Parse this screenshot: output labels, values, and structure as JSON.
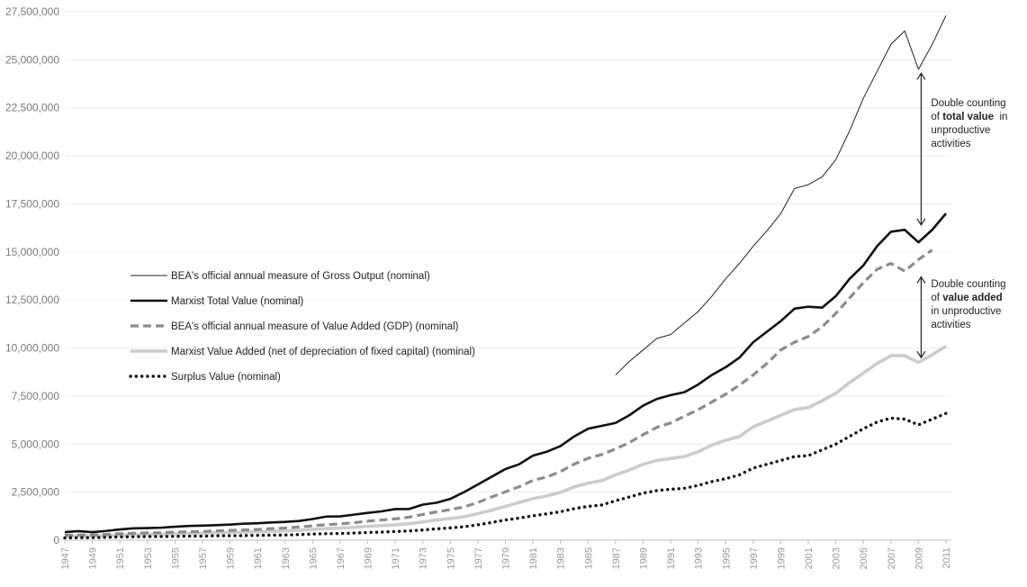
{
  "chart_data": {
    "type": "line",
    "title": "",
    "xlabel": "",
    "ylabel": "",
    "ylim": [
      0,
      27500000
    ],
    "yticks": [
      0,
      2500000,
      5000000,
      7500000,
      10000000,
      12500000,
      15000000,
      17500000,
      20000000,
      22500000,
      25000000,
      27500000
    ],
    "ytick_labels": [
      "0",
      "2,500,000",
      "5,000,000",
      "7,500,000",
      "10,000,000",
      "12,500,000",
      "15,000,000",
      "17,500,000",
      "20,000,000",
      "22,500,000",
      "25,000,000",
      "27,500,000"
    ],
    "xtick_labels": [
      "1947",
      "1949",
      "1951",
      "1953",
      "1955",
      "1957",
      "1959",
      "1961",
      "1963",
      "1965",
      "1967",
      "1969",
      "1971",
      "1973",
      "1975",
      "1977",
      "1979",
      "1981",
      "1983",
      "1985",
      "1987",
      "1989",
      "1991",
      "1993",
      "1995",
      "1997",
      "1999",
      "2001",
      "2003",
      "2005",
      "2007",
      "2009",
      "2011"
    ],
    "grid": "horizontal",
    "legend_position": "left",
    "x_start": 1947,
    "x_end": 2011,
    "series": [
      {
        "name": "BEA's official annual measure of Gross Output (nominal)",
        "style": "thin-black",
        "color": "#222222",
        "x_start": 1987,
        "values": [
          8600000,
          9300000,
          9900000,
          10500000,
          10700000,
          11300000,
          11900000,
          12700000,
          13600000,
          14400000,
          15300000,
          16100000,
          17000000,
          18300000,
          18500000,
          18900000,
          19800000,
          21300000,
          23000000,
          24400000,
          25800000,
          26500000,
          24500000,
          25800000,
          27300000
        ]
      },
      {
        "name": "Marxist Total Value (nominal)",
        "style": "thick-black",
        "color": "#111111",
        "x_start": 1947,
        "values": [
          420000,
          470000,
          420000,
          480000,
          560000,
          620000,
          630000,
          650000,
          700000,
          740000,
          760000,
          780000,
          810000,
          860000,
          880000,
          920000,
          950000,
          1000000,
          1100000,
          1230000,
          1240000,
          1330000,
          1420000,
          1500000,
          1620000,
          1620000,
          1850000,
          1950000,
          2150000,
          2500000,
          2900000,
          3300000,
          3700000,
          3950000,
          4400000,
          4600000,
          4900000,
          5400000,
          5800000,
          5950000,
          6100000,
          6500000,
          7000000,
          7350000,
          7550000,
          7700000,
          8100000,
          8600000,
          9000000,
          9500000,
          10300000,
          10850000,
          11400000,
          12050000,
          12150000,
          12100000,
          12700000,
          13600000,
          14300000,
          15300000,
          16050000,
          16150000,
          15500000,
          16150000,
          17000000
        ]
      },
      {
        "name": "BEA's official annual measure of Value Added (GDP) (nominal)",
        "style": "dashed-gray",
        "color": "#8c8c8c",
        "x_start": 1947,
        "values": [
          250000,
          270000,
          270000,
          300000,
          340000,
          360000,
          380000,
          390000,
          420000,
          440000,
          450000,
          490000,
          510000,
          530000,
          560000,
          600000,
          630000,
          690000,
          750000,
          810000,
          850000,
          910000,
          990000,
          1050000,
          1110000,
          1200000,
          1340000,
          1470000,
          1590000,
          1730000,
          1960000,
          2250000,
          2520000,
          2780000,
          3110000,
          3290000,
          3570000,
          3960000,
          4260000,
          4460000,
          4750000,
          5080000,
          5490000,
          5870000,
          6100000,
          6450000,
          6790000,
          7190000,
          7600000,
          8070000,
          8600000,
          9200000,
          9900000,
          10300000,
          10600000,
          11100000,
          11800000,
          12600000,
          13400000,
          14100000,
          14400000,
          14000000,
          14600000,
          15100000
        ]
      },
      {
        "name": "Marxist Value Added (net of depreciation of fixed capital) (nominal)",
        "style": "thick-lightgray",
        "color": "#cccccc",
        "x_start": 1947,
        "values": [
          200000,
          220000,
          210000,
          240000,
          270000,
          290000,
          300000,
          310000,
          330000,
          350000,
          360000,
          390000,
          400000,
          420000,
          440000,
          460000,
          480000,
          520000,
          560000,
          600000,
          630000,
          670000,
          720000,
          760000,
          800000,
          860000,
          950000,
          1050000,
          1130000,
          1220000,
          1380000,
          1560000,
          1760000,
          1960000,
          2160000,
          2300000,
          2490000,
          2770000,
          2970000,
          3100000,
          3400000,
          3650000,
          3950000,
          4150000,
          4250000,
          4350000,
          4600000,
          4950000,
          5200000,
          5400000,
          5900000,
          6200000,
          6500000,
          6800000,
          6900000,
          7250000,
          7650000,
          8200000,
          8700000,
          9200000,
          9600000,
          9600000,
          9250000,
          9650000,
          10100000
        ]
      },
      {
        "name": "Surplus Value (nominal)",
        "style": "dotted-black",
        "color": "#111111",
        "x_start": 1947,
        "values": [
          120000,
          130000,
          130000,
          150000,
          170000,
          180000,
          190000,
          190000,
          200000,
          210000,
          210000,
          230000,
          230000,
          240000,
          250000,
          260000,
          270000,
          290000,
          320000,
          340000,
          350000,
          370000,
          400000,
          420000,
          450000,
          480000,
          530000,
          590000,
          640000,
          700000,
          800000,
          920000,
          1050000,
          1150000,
          1270000,
          1370000,
          1480000,
          1640000,
          1760000,
          1830000,
          2050000,
          2250000,
          2450000,
          2580000,
          2650000,
          2700000,
          2850000,
          3050000,
          3200000,
          3400000,
          3750000,
          3950000,
          4150000,
          4350000,
          4400000,
          4700000,
          5000000,
          5400000,
          5800000,
          6150000,
          6350000,
          6300000,
          6000000,
          6300000,
          6600000
        ]
      }
    ],
    "annotations": [
      {
        "name": "total-value-gap",
        "lines": [
          [
            {
              "text": "Double counting",
              "bold": false
            }
          ],
          [
            {
              "text": "of ",
              "bold": false
            },
            {
              "text": "total value",
              "bold": true
            },
            {
              "text": "  in",
              "bold": false
            }
          ],
          [
            {
              "text": "unproductive",
              "bold": false
            }
          ],
          [
            {
              "text": "activities",
              "bold": false
            }
          ]
        ],
        "arrow_year": 2009,
        "arrow_from": 24300000,
        "arrow_to": 16400000
      },
      {
        "name": "value-added-gap",
        "lines": [
          [
            {
              "text": "Double counting",
              "bold": false
            }
          ],
          [
            {
              "text": "of ",
              "bold": false
            },
            {
              "text": "value added",
              "bold": true
            }
          ],
          [
            {
              "text": "in unproductive",
              "bold": false
            }
          ],
          [
            {
              "text": "activities",
              "bold": false
            }
          ]
        ],
        "arrow_year": 2009,
        "arrow_from": 13700000,
        "arrow_to": 9500000
      }
    ]
  }
}
